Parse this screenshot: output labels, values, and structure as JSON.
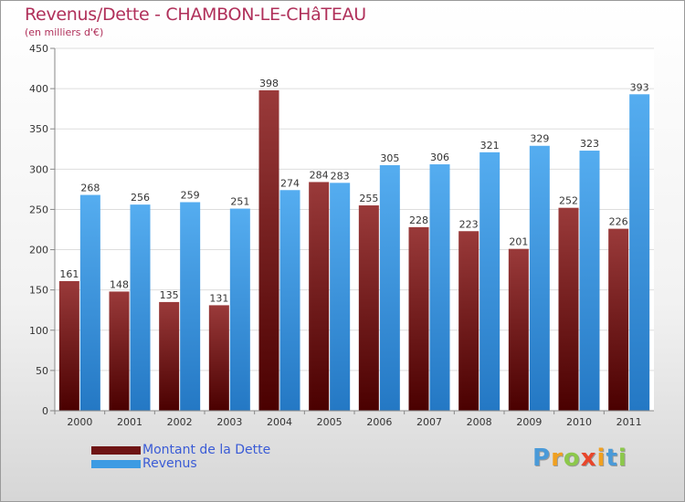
{
  "title": "Revenus/Dette - CHAMBON-LE-CHâTEAU",
  "subtitle": "(en milliers d'€)",
  "logo": {
    "text": "Proxiti",
    "colors": [
      "#4a9ad8",
      "#f0a020",
      "#8cc84b",
      "#e8462b",
      "#f0a020",
      "#4a9ad8",
      "#8cc84b"
    ]
  },
  "chart_data": {
    "type": "bar",
    "categories": [
      "2000",
      "2001",
      "2002",
      "2003",
      "2004",
      "2005",
      "2006",
      "2007",
      "2008",
      "2009",
      "2010",
      "2011"
    ],
    "series": [
      {
        "name": "Montant de la Dette",
        "color": "#6e1414",
        "values": [
          161,
          148,
          135,
          131,
          398,
          284,
          255,
          228,
          223,
          201,
          252,
          226
        ]
      },
      {
        "name": "Revenus",
        "color": "#3d9be3",
        "values": [
          268,
          256,
          259,
          251,
          274,
          283,
          305,
          306,
          321,
          329,
          323,
          393
        ]
      }
    ],
    "ylim": [
      0,
      450
    ],
    "yticks": [
      0,
      50,
      100,
      150,
      200,
      250,
      300,
      350,
      400,
      450
    ],
    "grid": true,
    "legend": "bottom-left"
  }
}
